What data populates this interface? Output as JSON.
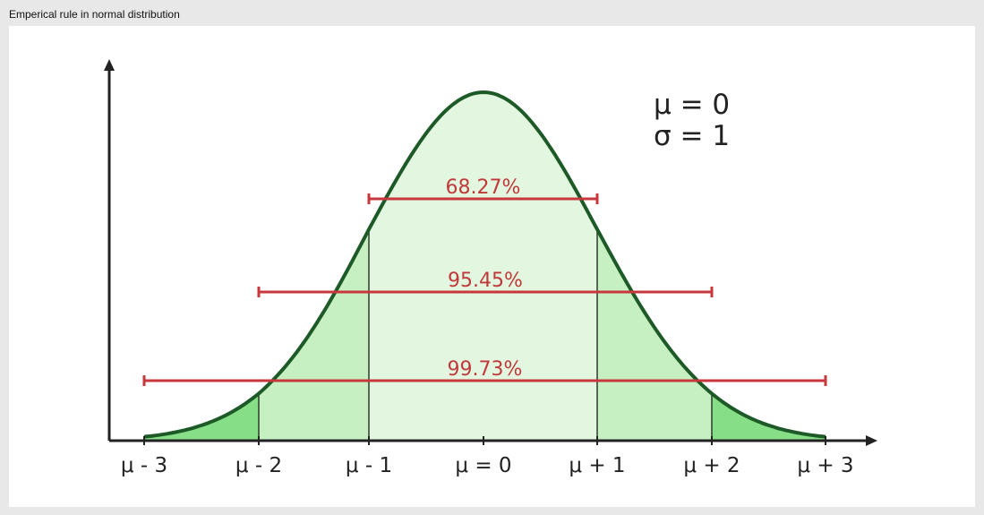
{
  "window": {
    "title": "Emperical rule in  normal distribution"
  },
  "parameters": {
    "mu": "μ = 0",
    "sigma": "σ = 1"
  },
  "chart_data": {
    "type": "area",
    "distribution": "normal",
    "mean": 0,
    "sd": 1,
    "x_ticks": [
      {
        "value": -3,
        "label": "μ - 3"
      },
      {
        "value": -2,
        "label": "μ - 2"
      },
      {
        "value": -1,
        "label": "μ - 1"
      },
      {
        "value": 0,
        "label": "μ = 0"
      },
      {
        "value": 1,
        "label": "μ + 1"
      },
      {
        "value": 2,
        "label": "μ + 2"
      },
      {
        "value": 3,
        "label": "μ + 3"
      }
    ],
    "ranges": [
      {
        "from": -1,
        "to": 1,
        "label": "68.27%"
      },
      {
        "from": -2,
        "to": 2,
        "label": "95.45%"
      },
      {
        "from": -3,
        "to": 3,
        "label": "99.73%"
      }
    ],
    "colors": {
      "curve": "#1e5a28",
      "band_1sd": "#e3f7e0",
      "band_2sd": "#c6f0c2",
      "band_3sd": "#86df86",
      "range_lines": "#c8373b",
      "axis": "#222222"
    }
  }
}
